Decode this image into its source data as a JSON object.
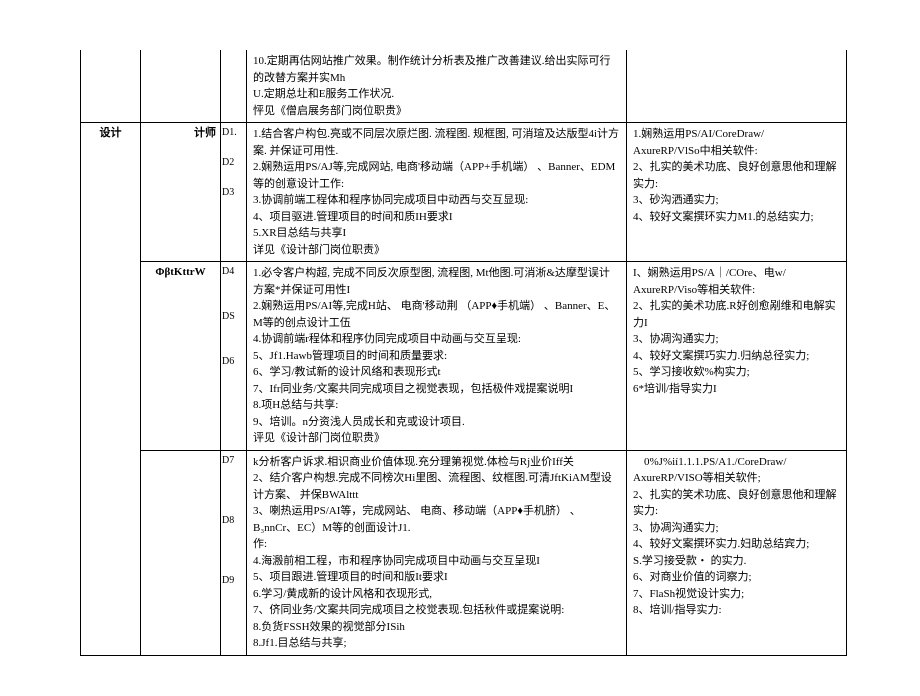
{
  "row0": {
    "content": "10.定期再估网站推广效果。制作统计分析表及推广改善建议.给出实际可行的改替方案并实Mh\nU.定期总圵和E服务工作状况.\n怦见《僧启展务部门岗位职贵》"
  },
  "row1": {
    "col1": "设计",
    "col2": "计师",
    "tags": [
      "D1.",
      "D2",
      "D3"
    ],
    "content": "1.结合客户构包.亮或不同层次原烂图. 流程图. 规框图, 可消瑄及达版型4i计方案. 并保证可用性.\n2.娴熟运用PS/AJ等,完成网站, 电商'移动端（APP+手机端） 、Banner、EDM等的创意设计工作:\n3.协调前端工程体和程序协同完成项目中动西与交互显现:\n4、项目驱进.管理项目的时间和质IH要求I\n5.XR目总结与共享I\n详见《设计部门岗位职责》",
    "req": "1.娴熟运用PS/AI/CoreDraw/\nAxureRP/VlSo中相关软件:\n2、扎实的美术功底、良好创意思他和理解实力:\n3、砂沟洒通实力;\n4、较好文案撰环实力M1.的总结实力;"
  },
  "row2": {
    "col2": "ΦβtKttrW",
    "tags": [
      "D4",
      "DS",
      "D6"
    ],
    "content": "1.必令客户构超, 完成不同反次原型图, 流程图, Mt他图.可消淅&达摩型误计方案*并保证可用性I\n2.娴熟运用PS/AI等,完成H站、 电商'移动荆 （APP♦手机端） 、Banner、E、 M等的创点设计工伍\n4.协调前端r程体和程序仂同完成项目中动画与交互呈现:\n5、Jf1.Hawb管理项目的时间和质量要求:\n6、学习/教试新的设计风络和表现形式t\n7、Ifr同业务/文案共同完成项目之视觉表现，包括极件戏提案说明I\n8.项H总结与共享:\n9、培训。n分资浅人员成长和克或设计项目.\n评见《设计部门岗位职贵》",
    "req": "I、娴熟运用PS/A｜/COre、电w/\nAxureRP/Viso等相关软件:\n2、扎实的美术功底.R好创愈剐维和电解实力I\n3、协凋沟通实力;\n4、较好文案撰巧实力.归纳总径实力;\n5、学习接收欸%构实力;\n6*培训/指导实力I"
  },
  "row3": {
    "tags": [
      "D7",
      "D8",
      "D9"
    ],
    "content": "k分析客户诉求.相识商业价值体现.充分理第视觉.体检与Rj业价Iff关\n2、结介客户构想.完成不同榜次Hi里图、流程图、纹框图.可清JftKiAM型设计方案、 并保BWAlttt\n3、喇热运用PS/AI等，完成网站、 电商、移动端（APP♦手机脐） 、B₃nnCr、EC）M等的创面设计J1.\n作:\n4.海溵前相工程，市和程序协同完成项目中动画与交互呈现I\n5、项目跟进.管理项目的时间和版It要求I\n6.学习/黄成新的设计风格和衣现形式,\n7、侪同业务/文案共同完成项目之校觉表现.包括秋件或提案说明:\n8.负货FSSH效果的视觉部分ISih\n8.Jf1.目总结与共享;",
    "req": "    0%J%ií1.1.1.PS/A1./CoreDraw/\nAxureRP/VISO等相关软件;\n2、扎实的笑术功底、良好创意思他和理解实力:\n3、协凋沟通实力;\n4、较好文案撰环实力.妇助总结宾力;\nS.学习接受款・ 的实力.\n6、对商业价值的词察力;\n7、FlaSh视觉设计实力;\n8、培训/指导实力:"
  }
}
